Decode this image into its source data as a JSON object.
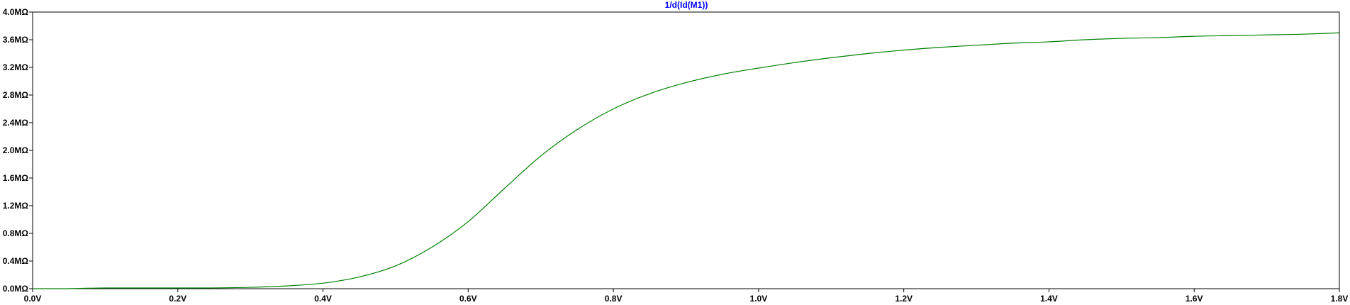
{
  "colors": {
    "background": "#ffffff",
    "frame": "#000000",
    "tick_text": "#000000",
    "trace": "#008000",
    "title": "#0000ff"
  },
  "chart_data": {
    "type": "line",
    "title": "1/d(Id(M1))",
    "xlabel": "",
    "ylabel": "",
    "xlim": [
      0.0,
      1.8
    ],
    "ylim": [
      0.0,
      4.0
    ],
    "x_unit": "V",
    "y_unit": "MΩ",
    "grid": false,
    "legend": "none",
    "x_ticks": [
      "0.0V",
      "0.2V",
      "0.4V",
      "0.6V",
      "0.8V",
      "1.0V",
      "1.2V",
      "1.4V",
      "1.6V",
      "1.8V"
    ],
    "y_ticks": [
      "4.0MΩ",
      "3.6MΩ",
      "3.2MΩ",
      "2.8MΩ",
      "2.4MΩ",
      "2.0MΩ",
      "1.6MΩ",
      "1.2MΩ",
      "0.8MΩ",
      "0.4MΩ",
      "0.0MΩ"
    ],
    "series": [
      {
        "name": "1/d(Id(M1))",
        "x": [
          0.0,
          0.04,
          0.1,
          0.2,
          0.3,
          0.35,
          0.4,
          0.45,
          0.5,
          0.55,
          0.6,
          0.65,
          0.7,
          0.75,
          0.8,
          0.85,
          0.9,
          0.95,
          1.0,
          1.05,
          1.1,
          1.15,
          1.2,
          1.25,
          1.3,
          1.35,
          1.4,
          1.45,
          1.5,
          1.55,
          1.6,
          1.65,
          1.7,
          1.75,
          1.8
        ],
        "y": [
          0.0,
          0.0,
          0.01,
          0.01,
          0.02,
          0.04,
          0.08,
          0.17,
          0.33,
          0.6,
          0.97,
          1.45,
          1.92,
          2.3,
          2.6,
          2.82,
          2.98,
          3.1,
          3.19,
          3.27,
          3.34,
          3.4,
          3.45,
          3.49,
          3.52,
          3.55,
          3.57,
          3.6,
          3.62,
          3.63,
          3.65,
          3.66,
          3.67,
          3.68,
          3.7
        ]
      }
    ]
  }
}
